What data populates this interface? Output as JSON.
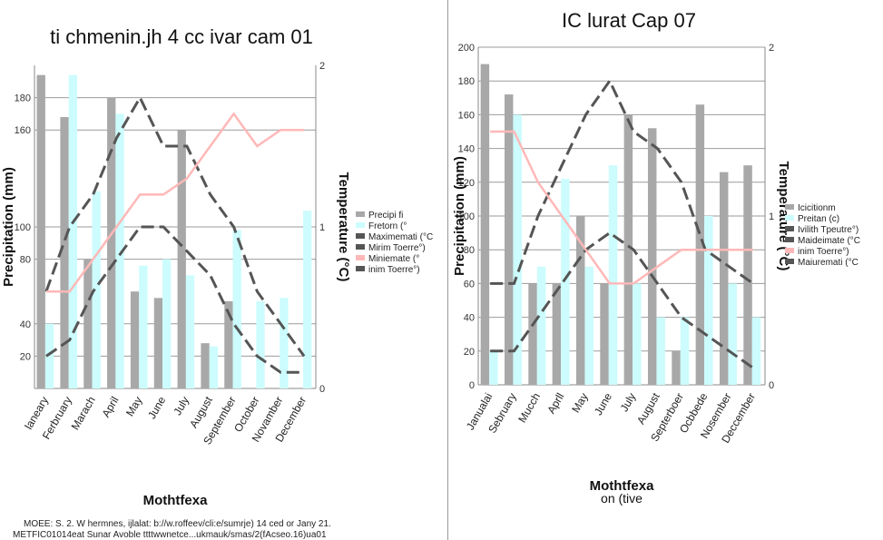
{
  "charts": [
    {
      "title": "ti chmenin.jh 4 cc ivar cam 01",
      "xlabel": "Mothtfexa",
      "ylabel_left": "Precipitation (mm)",
      "ylabel_right": "Temperature (°C)",
      "legend": [
        "Precipi fi",
        "Fretorn (°",
        "Maximemati (°C",
        "Mirim Toerre°)",
        "Miniemate (°",
        "inim Toerre°)"
      ]
    },
    {
      "title": "IC lurat Cap 07",
      "xlabel": "Mothtfexa",
      "xlabel2": "on (tive",
      "ylabel_left": "Precipitation (mm)",
      "ylabel_right": "Temperature (°C)",
      "legend": [
        "Icicitionm",
        "Preitan (c)",
        "Ivilith Tpeutre°)",
        "Maideimate (°C",
        "inim Toerre°)",
        "Maiuremati (°C"
      ]
    }
  ],
  "footnote_1": "MOEE: S. 2. W hermnes, ijlalat: b://w.roffeev/cli:e/sumrje) 14 ced or Jany 21.",
  "footnote_2": "METFIC01014eat Sunar Avoble ttttwwnetce...ukmauk/smas/2(fAcseo.16)ua01",
  "chart_data": [
    {
      "type": "bar",
      "title": "ti chmenin.jh 4 cc ivar cam 01",
      "categories": [
        "laneary",
        "Ferbruary",
        "Marach",
        "April",
        "May",
        "June",
        "July",
        "August",
        "September",
        "October",
        "Novamber",
        "December"
      ],
      "ylim": [
        0,
        200
      ],
      "y_ticks": [
        20,
        40,
        80,
        100,
        160,
        180
      ],
      "y2lim": [
        0,
        2
      ],
      "y2_ticks": [
        0,
        1,
        2
      ],
      "series": [
        {
          "name": "Precipi fi",
          "kind": "bar",
          "color": "#a8a8a8",
          "values": [
            194,
            168,
            80,
            180,
            60,
            56,
            160,
            28,
            54,
            0,
            0,
            0
          ]
        },
        {
          "name": "Fretorn (°",
          "kind": "bar",
          "color": "#ccfcfd",
          "values": [
            40,
            194,
            122,
            170,
            76,
            80,
            70,
            26,
            98,
            54,
            56,
            110
          ]
        },
        {
          "name": "Maximemati (°C",
          "kind": "line",
          "color": "#555555",
          "dash": true,
          "values": [
            60,
            100,
            120,
            155,
            180,
            150,
            150,
            120,
            100,
            60,
            40,
            20
          ]
        },
        {
          "name": "Mirim Toerre°)",
          "kind": "line",
          "color": "#555555",
          "dash": true,
          "values": [
            20,
            30,
            60,
            80,
            100,
            100,
            85,
            70,
            40,
            20,
            10,
            10
          ]
        },
        {
          "name": "inim Toerre°)",
          "kind": "line",
          "color": "#ffb8b8",
          "dash": false,
          "values": [
            60,
            60,
            80,
            100,
            120,
            120,
            130,
            150,
            170,
            150,
            160,
            160
          ]
        }
      ]
    },
    {
      "type": "bar",
      "title": "IC lurat Cap 07",
      "categories": [
        "Janualai",
        "Sebruary",
        "Mucch",
        "Aprll",
        "May",
        "June",
        "July",
        "August",
        "Septerboer",
        "Ocbbede",
        "Nosember",
        "Deccember"
      ],
      "ylim": [
        0,
        200
      ],
      "y_ticks": [
        0,
        20,
        40,
        60,
        80,
        100,
        120,
        140,
        160,
        180,
        200
      ],
      "y2lim": [
        0,
        2
      ],
      "y2_ticks": [
        0,
        1,
        2
      ],
      "series": [
        {
          "name": "Icicitionm",
          "kind": "bar",
          "color": "#a8a8a8",
          "values": [
            190,
            172,
            60,
            60,
            100,
            60,
            160,
            152,
            20,
            166,
            126,
            130
          ]
        },
        {
          "name": "Preitan (c)",
          "kind": "bar",
          "color": "#ccfcfd",
          "values": [
            20,
            160,
            70,
            122,
            70,
            130,
            60,
            40,
            40,
            100,
            60,
            40
          ]
        },
        {
          "name": "Maiuremati (°C",
          "kind": "line",
          "color": "#555555",
          "dash": true,
          "values": [
            60,
            60,
            100,
            130,
            160,
            180,
            150,
            140,
            120,
            80,
            70,
            60
          ]
        },
        {
          "name": "Maideimate (°C",
          "kind": "line",
          "color": "#555555",
          "dash": true,
          "values": [
            20,
            20,
            40,
            60,
            80,
            90,
            80,
            60,
            40,
            30,
            20,
            10
          ]
        },
        {
          "name": "Ivilith Tpeutre°)",
          "kind": "line",
          "color": "#ffb8b8",
          "dash": false,
          "values": [
            150,
            150,
            120,
            100,
            80,
            60,
            60,
            70,
            80,
            80,
            80,
            80
          ]
        }
      ]
    }
  ]
}
